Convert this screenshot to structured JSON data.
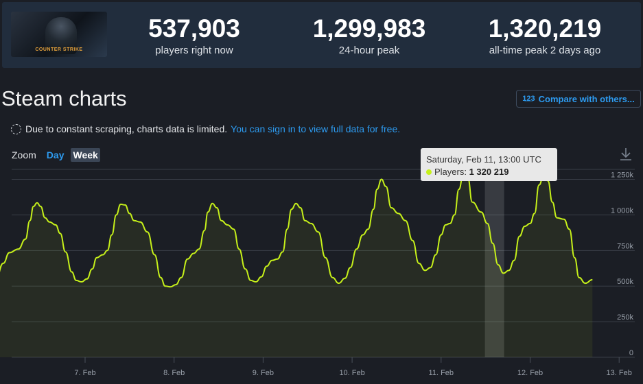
{
  "header": {
    "logo": {
      "alt": "Counter-Strike",
      "brand": "COUNTER STRIKE"
    },
    "stats": [
      {
        "value": "537,903",
        "label": "players right now"
      },
      {
        "value": "1,299,983",
        "label": "24-hour peak"
      },
      {
        "value": "1,320,219",
        "label": "all-time peak 2 days ago"
      }
    ]
  },
  "page_title": "Steam charts",
  "compare_button": {
    "icon_text": "1̲2̲3",
    "label": "Compare with others..."
  },
  "notice": {
    "text": "Due to constant scraping, charts data is limited.",
    "link": "You can sign in to view full data for free."
  },
  "zoom": {
    "label": "Zoom",
    "options": [
      "Day",
      "Week"
    ],
    "active": "Week"
  },
  "tooltip": {
    "title": "Saturday, Feb 11, 13:00 UTC",
    "series_label": "Players:",
    "value": "1 320 219"
  },
  "colors": {
    "line": "#c6f01a",
    "accent": "#2d9bf0",
    "background": "#1b1e25",
    "header_bg": "#212d3d"
  },
  "chart_data": {
    "type": "line",
    "ylim": [
      0,
      1320000
    ],
    "y_ticks": [
      0,
      250000,
      500000,
      750000,
      1000000,
      1250000
    ],
    "y_tick_labels": [
      "0",
      "250k",
      "500k",
      "750k",
      "1 000k",
      "1 250k"
    ],
    "x_ticks": [
      1,
      2,
      3,
      4,
      5,
      6,
      7
    ],
    "x_tick_labels": [
      "7. Feb",
      "8. Feb",
      "9. Feb",
      "10. Feb",
      "11. Feb",
      "12. Feb",
      "13. Feb"
    ],
    "grid": true,
    "highlight_x": 5.6,
    "series": [
      {
        "points": [
          [
            0,
            555000
          ],
          [
            0.08,
            660000
          ],
          [
            0.15,
            735000
          ],
          [
            0.25,
            760000
          ],
          [
            0.33,
            830000
          ],
          [
            0.38,
            960000
          ],
          [
            0.42,
            1060000
          ],
          [
            0.46,
            1085000
          ],
          [
            0.5,
            1060000
          ],
          [
            0.55,
            980000
          ],
          [
            0.6,
            950000
          ],
          [
            0.67,
            930000
          ],
          [
            0.72,
            870000
          ],
          [
            0.78,
            740000
          ],
          [
            0.85,
            600000
          ],
          [
            0.9,
            540000
          ],
          [
            0.96,
            530000
          ],
          [
            1.02,
            550000
          ],
          [
            1.08,
            620000
          ],
          [
            1.13,
            700000
          ],
          [
            1.2,
            720000
          ],
          [
            1.25,
            750000
          ],
          [
            1.3,
            860000
          ],
          [
            1.35,
            1000000
          ],
          [
            1.4,
            1075000
          ],
          [
            1.45,
            1070000
          ],
          [
            1.5,
            1010000
          ],
          [
            1.55,
            960000
          ],
          [
            1.62,
            950000
          ],
          [
            1.7,
            880000
          ],
          [
            1.78,
            720000
          ],
          [
            1.85,
            560000
          ],
          [
            1.9,
            500000
          ],
          [
            1.96,
            495000
          ],
          [
            2.02,
            510000
          ],
          [
            2.08,
            560000
          ],
          [
            2.15,
            690000
          ],
          [
            2.22,
            730000
          ],
          [
            2.28,
            760000
          ],
          [
            2.34,
            890000
          ],
          [
            2.38,
            1020000
          ],
          [
            2.43,
            1080000
          ],
          [
            2.48,
            1050000
          ],
          [
            2.53,
            960000
          ],
          [
            2.6,
            930000
          ],
          [
            2.67,
            900000
          ],
          [
            2.73,
            760000
          ],
          [
            2.8,
            620000
          ],
          [
            2.86,
            540000
          ],
          [
            2.92,
            530000
          ],
          [
            2.98,
            565000
          ],
          [
            3.04,
            640000
          ],
          [
            3.1,
            680000
          ],
          [
            3.16,
            690000
          ],
          [
            3.22,
            740000
          ],
          [
            3.27,
            900000
          ],
          [
            3.32,
            1040000
          ],
          [
            3.37,
            1080000
          ],
          [
            3.42,
            1050000
          ],
          [
            3.47,
            960000
          ],
          [
            3.54,
            940000
          ],
          [
            3.62,
            880000
          ],
          [
            3.7,
            700000
          ],
          [
            3.78,
            560000
          ],
          [
            3.85,
            520000
          ],
          [
            3.92,
            555000
          ],
          [
            3.98,
            630000
          ],
          [
            4.05,
            760000
          ],
          [
            4.12,
            860000
          ],
          [
            4.18,
            900000
          ],
          [
            4.24,
            1040000
          ],
          [
            4.28,
            1180000
          ],
          [
            4.33,
            1250000
          ],
          [
            4.38,
            1200000
          ],
          [
            4.44,
            1050000
          ],
          [
            4.52,
            1010000
          ],
          [
            4.6,
            960000
          ],
          [
            4.68,
            820000
          ],
          [
            4.75,
            660000
          ],
          [
            4.82,
            610000
          ],
          [
            4.88,
            630000
          ],
          [
            4.94,
            720000
          ],
          [
            5.0,
            860000
          ],
          [
            5.05,
            930000
          ],
          [
            5.1,
            940000
          ],
          [
            5.15,
            1000000
          ],
          [
            5.2,
            1180000
          ],
          [
            5.25,
            1290000
          ],
          [
            5.3,
            1260000
          ],
          [
            5.35,
            1090000
          ],
          [
            5.45,
            1020000
          ],
          [
            5.52,
            940000
          ],
          [
            5.58,
            800000
          ],
          [
            5.64,
            650000
          ],
          [
            5.7,
            590000
          ],
          [
            5.76,
            610000
          ],
          [
            5.82,
            680000
          ],
          [
            5.88,
            850000
          ],
          [
            5.94,
            920000
          ],
          [
            6.0,
            940000
          ],
          [
            6.05,
            1010000
          ],
          [
            6.1,
            1210000
          ],
          [
            6.15,
            1270000
          ],
          [
            6.2,
            1240000
          ],
          [
            6.25,
            1090000
          ],
          [
            6.3,
            980000
          ],
          [
            6.38,
            970000
          ],
          [
            6.44,
            900000
          ],
          [
            6.5,
            700000
          ],
          [
            6.55,
            560000
          ],
          [
            6.62,
            520000
          ],
          [
            6.7,
            545000
          ]
        ]
      }
    ]
  }
}
